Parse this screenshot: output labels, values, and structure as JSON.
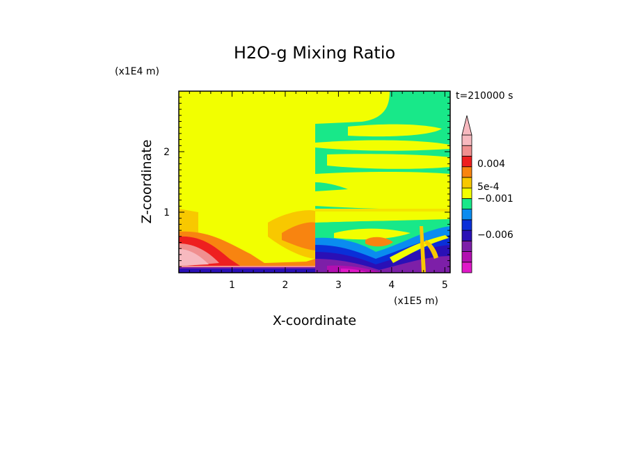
{
  "chart_data": {
    "type": "heatmap",
    "title": "H2O-g Mixing Ratio",
    "xlabel": "X-coordinate",
    "ylabel": "Z-coordinate",
    "x_multiplier": "(x1E5 m)",
    "y_multiplier": "(x1E4 m)",
    "time_label": "t=210000 s",
    "xlim": [
      0,
      5.1
    ],
    "ylim": [
      0,
      3.0
    ],
    "x_ticks": [
      1,
      2,
      3,
      4,
      5
    ],
    "y_ticks": [
      1,
      2
    ],
    "colorbar": {
      "labels": [
        "0.004",
        "5e-4",
        "−0.001",
        "−0.006"
      ],
      "levels": [
        {
          "min": null,
          "max": -0.008,
          "color": "#e019c8"
        },
        {
          "min": -0.008,
          "max": -0.007,
          "color": "#b20fb0"
        },
        {
          "min": -0.007,
          "max": -0.005,
          "color": "#7d1fa8"
        },
        {
          "min": -0.005,
          "max": -0.003,
          "color": "#2a10b6"
        },
        {
          "min": -0.003,
          "max": -0.0015,
          "color": "#0a2fd8"
        },
        {
          "min": -0.0015,
          "max": -0.001,
          "color": "#0a8cf0"
        },
        {
          "min": -0.001,
          "max": 0.0,
          "color": "#18e889"
        },
        {
          "min": 0.0,
          "max": 0.0005,
          "color": "#f2ff00"
        },
        {
          "min": 0.0005,
          "max": 0.001,
          "color": "#f8c800"
        },
        {
          "min": 0.001,
          "max": 0.003,
          "color": "#f88410"
        },
        {
          "min": 0.003,
          "max": 0.005,
          "color": "#ee1f1f"
        },
        {
          "min": 0.005,
          "max": 0.007,
          "color": "#f08f8f"
        },
        {
          "min": 0.007,
          "max": null,
          "color": "#f7b9bf"
        }
      ]
    }
  }
}
